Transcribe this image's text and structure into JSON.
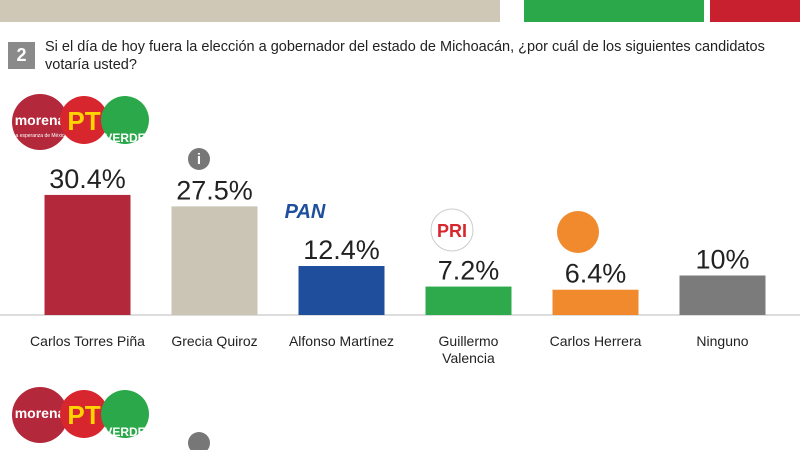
{
  "question": {
    "number": "2",
    "text": "Si el día de hoy fuera la elección a gobernador del estado de Michoacán, ¿por cuál de los siguientes candidatos votaría usted?"
  },
  "logos": {
    "morena": "morena",
    "morena_tagline": "La esperanza de México",
    "pt": "PT",
    "verde": "VERDE",
    "pan": "PAN",
    "pri": "PRI",
    "info": "i"
  },
  "chart_data": {
    "type": "bar",
    "categories": [
      "Carlos Torres Piña",
      "Grecia Quiroz",
      "Alfonso Martínez",
      "Guillermo Valencia",
      "Carlos Herrera",
      "Ninguno"
    ],
    "values": [
      30.4,
      27.5,
      12.4,
      7.2,
      6.4,
      10
    ],
    "value_labels": [
      "30.4%",
      "27.5%",
      "12.4%",
      "7.2%",
      "6.4%",
      "10%"
    ],
    "colors": [
      "#b3283a",
      "#cbc5b5",
      "#1f4e9c",
      "#2eaa4c",
      "#f08a2c",
      "#7b7b7b"
    ],
    "ylim": [
      0,
      40
    ]
  }
}
